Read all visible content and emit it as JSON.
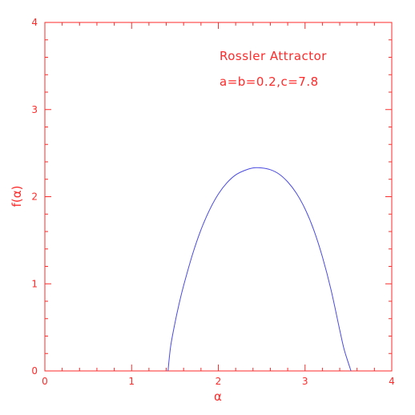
{
  "chart_data": {
    "type": "line",
    "title": "",
    "xlabel": "α",
    "ylabel": "f(α)",
    "xlim": [
      0,
      4
    ],
    "ylim": [
      0,
      4
    ],
    "x_ticks": [
      0,
      1,
      2,
      3,
      4
    ],
    "y_ticks": [
      0,
      1,
      2,
      3,
      4
    ],
    "x_tick_labels": [
      "0",
      "1",
      "2",
      "3",
      "4"
    ],
    "y_tick_labels": [
      "0",
      "1",
      "2",
      "3",
      "4"
    ],
    "minor_ticks_per_major": 5,
    "grid": false,
    "annotations": [
      "Rossler Attractor",
      "a=b=0.2,c=7.8"
    ],
    "series": [
      {
        "color": "#4a4ae0",
        "x": [
          1.42,
          1.45,
          1.5,
          1.55,
          1.6,
          1.7,
          1.8,
          1.9,
          2.0,
          2.1,
          2.2,
          2.3,
          2.4,
          2.5,
          2.6,
          2.7,
          2.8,
          2.9,
          3.0,
          3.1,
          3.2,
          3.3,
          3.4,
          3.45,
          3.5,
          3.53
        ],
        "y": [
          0.0,
          0.28,
          0.55,
          0.78,
          0.98,
          1.33,
          1.62,
          1.85,
          2.03,
          2.16,
          2.25,
          2.3,
          2.33,
          2.33,
          2.31,
          2.26,
          2.17,
          2.04,
          1.86,
          1.62,
          1.31,
          0.93,
          0.47,
          0.25,
          0.09,
          0.0
        ]
      }
    ]
  },
  "colors": {
    "axis": "#ff2a2a",
    "curve": "#4a4ae0",
    "background": "#ffffff"
  }
}
